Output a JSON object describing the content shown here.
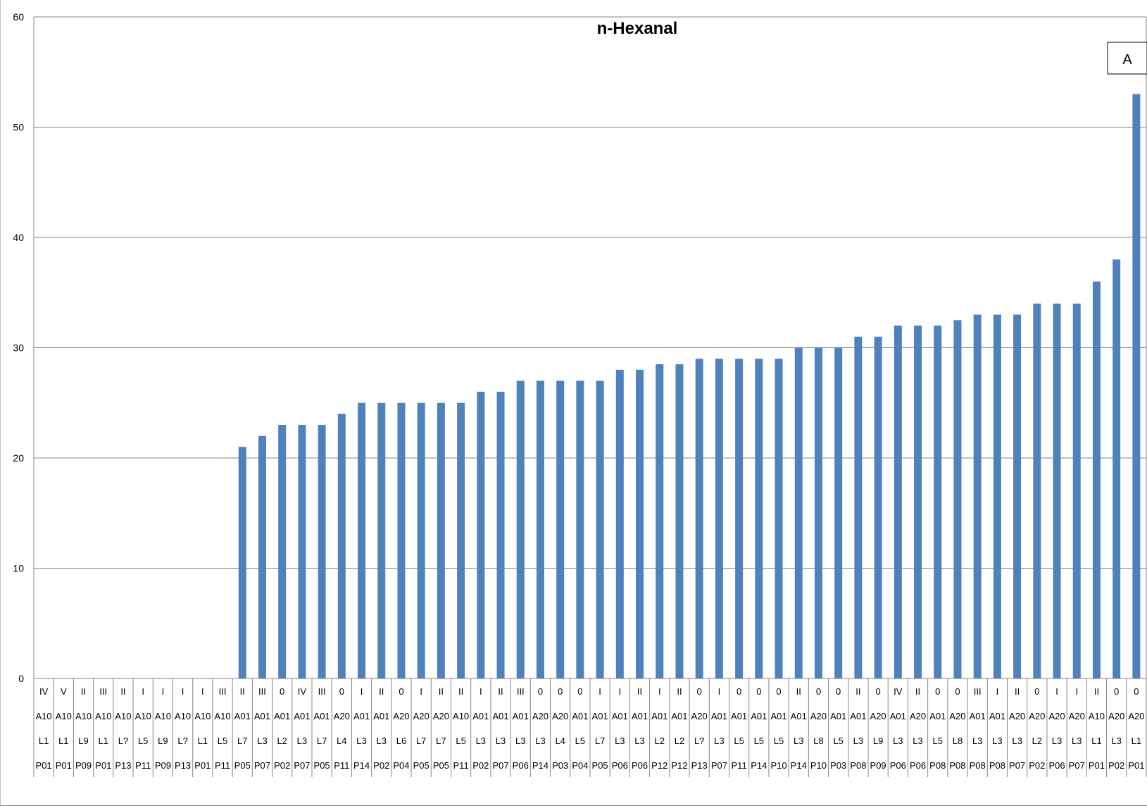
{
  "chart_data": {
    "type": "bar",
    "title": "n-Hexanal",
    "xlabel": "",
    "ylabel": "",
    "ylim": [
      0,
      60
    ],
    "yticks": [
      "0",
      "10",
      "20",
      "30",
      "40",
      "50",
      "60"
    ],
    "grid": true,
    "bar_color": "#4f81bd",
    "annotation": "A",
    "category_levels": [
      [
        "IV",
        "V",
        "II",
        "III",
        "II",
        "I",
        "I",
        "I",
        "I",
        "III",
        "II",
        "III",
        "0",
        "IV",
        "III",
        "0",
        "I",
        "II",
        "0",
        "I",
        "II",
        "II",
        "I",
        "II",
        "III",
        "0",
        "0",
        "0",
        "I",
        "I",
        "II",
        "I",
        "II",
        "0",
        "I",
        "0",
        "0",
        "0",
        "II",
        "0",
        "0",
        "II",
        "0",
        "IV",
        "II",
        "0",
        "0",
        "III",
        "I",
        "II",
        "0",
        "I",
        "I",
        "II",
        "0",
        "0"
      ],
      [
        "A10",
        "A10",
        "A10",
        "A10",
        "A10",
        "A10",
        "A10",
        "A10",
        "A10",
        "A10",
        "A01",
        "A01",
        "A01",
        "A01",
        "A01",
        "A20",
        "A01",
        "A01",
        "A20",
        "A20",
        "A20",
        "A10",
        "A01",
        "A01",
        "A01",
        "A20",
        "A20",
        "A01",
        "A01",
        "A01",
        "A01",
        "A01",
        "A01",
        "A20",
        "A01",
        "A01",
        "A01",
        "A01",
        "A01",
        "A20",
        "A01",
        "A01",
        "A20",
        "A01",
        "A20",
        "A01",
        "A20",
        "A01",
        "A01",
        "A20",
        "A20",
        "A20",
        "A20",
        "A10",
        "A20",
        "A20"
      ],
      [
        "L1",
        "L1",
        "L9",
        "L1",
        "L?",
        "L5",
        "L9",
        "L?",
        "L1",
        "L5",
        "L7",
        "L3",
        "L2",
        "L3",
        "L7",
        "L4",
        "L3",
        "L3",
        "L6",
        "L7",
        "L7",
        "L5",
        "L3",
        "L3",
        "L3",
        "L3",
        "L4",
        "L5",
        "L7",
        "L3",
        "L3",
        "L2",
        "L2",
        "L?",
        "L3",
        "L5",
        "L5",
        "L5",
        "L3",
        "L8",
        "L5",
        "L3",
        "L9",
        "L3",
        "L3",
        "L5",
        "L8",
        "L3",
        "L3",
        "L3",
        "L2",
        "L3",
        "L3",
        "L1",
        "L3",
        "L1"
      ],
      [
        "P01",
        "P01",
        "P09",
        "P01",
        "P13",
        "P11",
        "P09",
        "P13",
        "P01",
        "P11",
        "P05",
        "P07",
        "P02",
        "P07",
        "P05",
        "P11",
        "P14",
        "P02",
        "P04",
        "P05",
        "P05",
        "P11",
        "P02",
        "P07",
        "P06",
        "P14",
        "P03",
        "P04",
        "P05",
        "P06",
        "P06",
        "P12",
        "P12",
        "P13",
        "P07",
        "P11",
        "P14",
        "P10",
        "P14",
        "P10",
        "P03",
        "P08",
        "P09",
        "P06",
        "P06",
        "P08",
        "P08",
        "P08",
        "P08",
        "P07",
        "P02",
        "P06",
        "P07",
        "P01",
        "P02",
        "P01"
      ]
    ],
    "values": [
      0,
      0,
      0,
      0,
      0,
      0,
      0,
      0,
      0,
      0,
      21,
      22,
      23,
      23,
      23,
      24,
      25,
      25,
      25,
      25,
      25,
      25,
      26,
      26,
      27,
      27,
      27,
      27,
      27,
      28,
      28,
      28.5,
      28.5,
      29,
      29,
      29,
      29,
      29,
      30,
      30,
      30,
      31,
      31,
      32,
      32,
      32,
      32.5,
      33,
      33,
      33,
      34,
      34,
      34,
      36,
      38,
      53
    ]
  }
}
